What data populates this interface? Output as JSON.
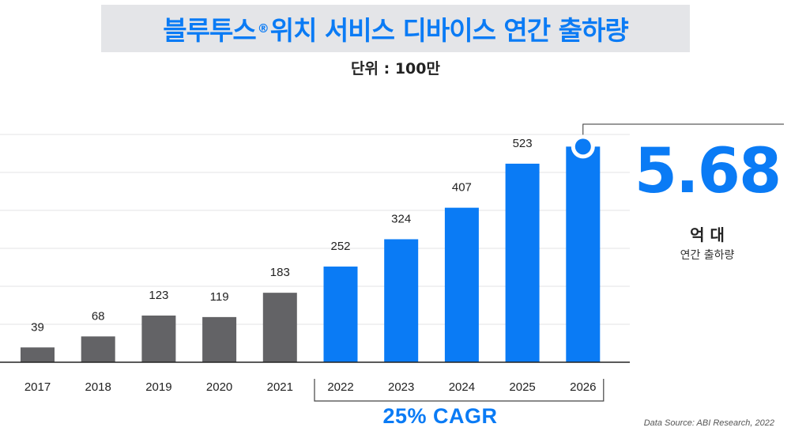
{
  "title": {
    "main_a": "블루투스",
    "reg_mark": "®",
    "main_b": "위치 서비스 디바이스 연간 출하량"
  },
  "unit_label": "단위 : 100만",
  "highlight": {
    "value": "5.68",
    "unit": "억 대",
    "caption": "연간 출하량"
  },
  "cagr_label": "25% CAGR",
  "source": "Data Source: ABI Research, 2022",
  "colors": {
    "historical": "#636366",
    "forecast": "#0a7bf5",
    "accent": "#0a7bf5",
    "band": "#e4e5e8"
  },
  "chart_data": {
    "type": "bar",
    "categories": [
      "2017",
      "2018",
      "2019",
      "2020",
      "2021",
      "2022",
      "2023",
      "2024",
      "2025",
      "2026"
    ],
    "values": [
      39,
      68,
      123,
      119,
      183,
      252,
      324,
      407,
      523,
      568
    ],
    "data_labels": [
      "39",
      "68",
      "123",
      "119",
      "183",
      "252",
      "324",
      "407",
      "523",
      ""
    ],
    "forecast_from": "2022",
    "ylim": [
      0,
      600
    ],
    "grid": true,
    "xlabel": "",
    "ylabel": ""
  }
}
